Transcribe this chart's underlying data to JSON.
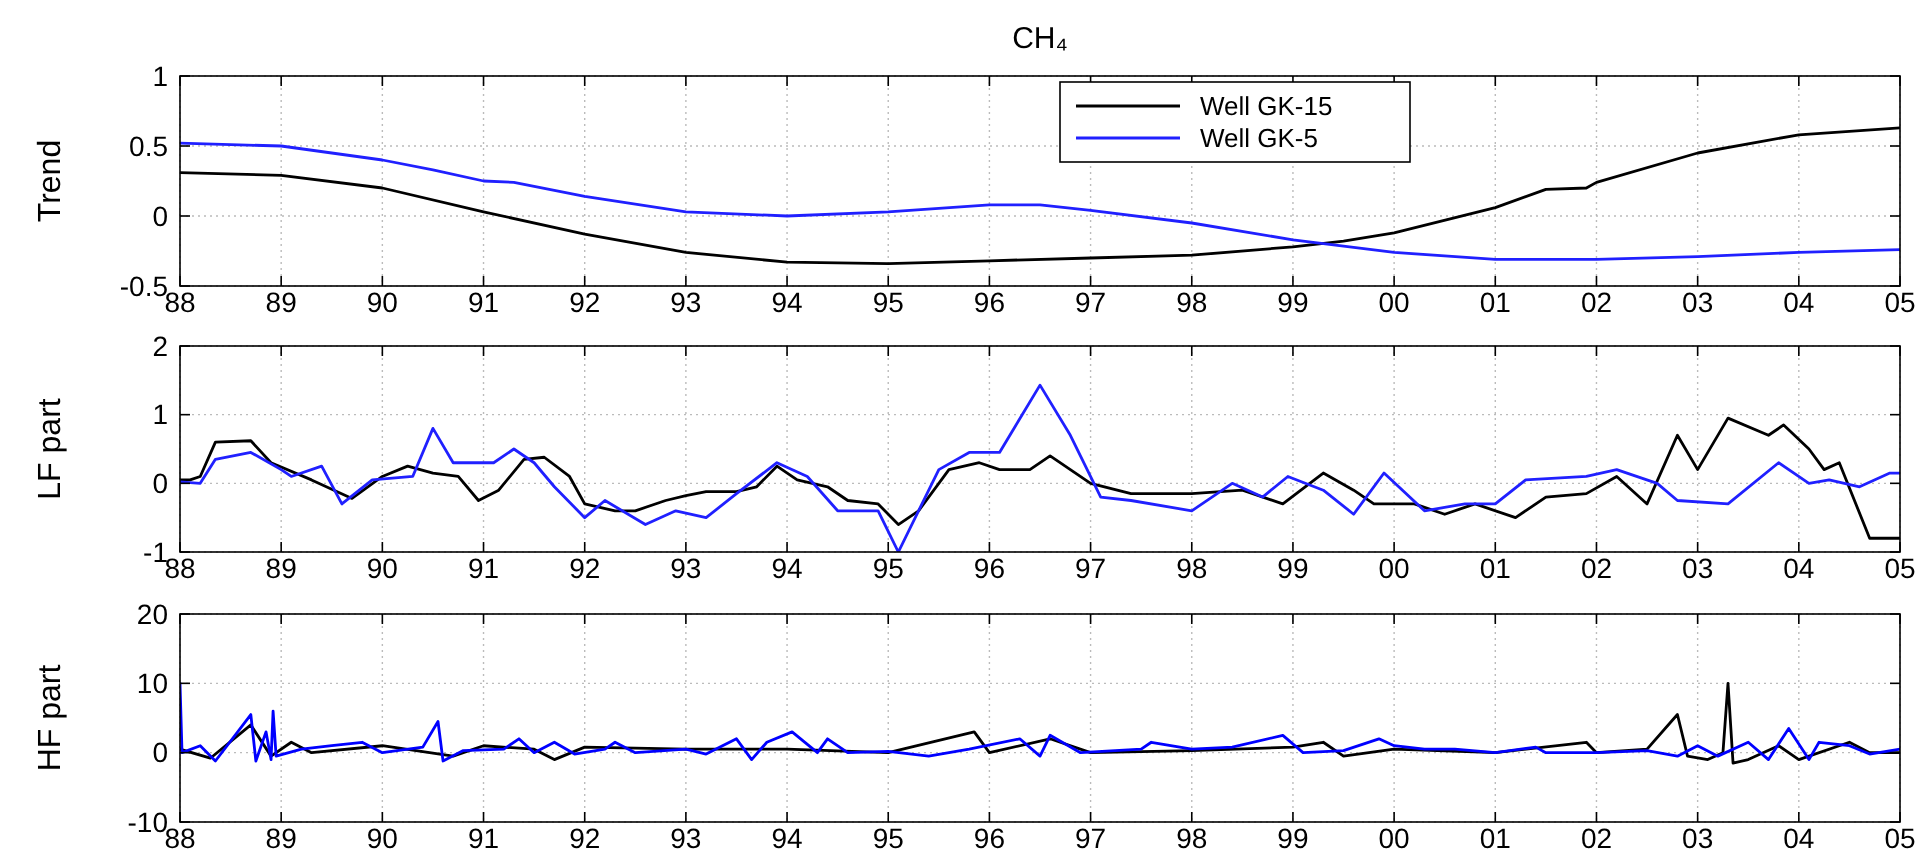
{
  "chart_data": [
    {
      "type": "line",
      "title": "CH₄",
      "ylabel": "Trend",
      "xlim": [
        1988,
        2005
      ],
      "ylim": [
        -0.5,
        1
      ],
      "yticks": [
        -0.5,
        0,
        0.5,
        1
      ],
      "xticks": [
        {
          "value": 1988,
          "label": "88"
        },
        {
          "value": 1989,
          "label": "89"
        },
        {
          "value": 1990,
          "label": "90"
        },
        {
          "value": 1991,
          "label": "91"
        },
        {
          "value": 1992,
          "label": "92"
        },
        {
          "value": 1993,
          "label": "93"
        },
        {
          "value": 1994,
          "label": "94"
        },
        {
          "value": 1995,
          "label": "95"
        },
        {
          "value": 1996,
          "label": "96"
        },
        {
          "value": 1997,
          "label": "97"
        },
        {
          "value": 1998,
          "label": "98"
        },
        {
          "value": 1999,
          "label": "99"
        },
        {
          "value": 2000,
          "label": "00"
        },
        {
          "value": 2001,
          "label": "01"
        },
        {
          "value": 2002,
          "label": "02"
        },
        {
          "value": 2003,
          "label": "03"
        },
        {
          "value": 2004,
          "label": "04"
        },
        {
          "value": 2005,
          "label": "05"
        }
      ],
      "grid": true,
      "legend": "top",
      "line_style": "solid",
      "series": [
        {
          "name": "Well GK-15",
          "color": "#000000",
          "x": [
            1988,
            1989,
            1990,
            1991,
            1992,
            1993,
            1994,
            1995,
            1996,
            1997,
            1998,
            1999,
            1999.5,
            2000,
            2001,
            2001.5,
            2001.9,
            2002,
            2003,
            2004,
            2005
          ],
          "values": [
            0.31,
            0.29,
            0.2,
            0.03,
            -0.13,
            -0.26,
            -0.33,
            -0.34,
            -0.32,
            -0.3,
            -0.28,
            -0.22,
            -0.18,
            -0.12,
            0.06,
            0.19,
            0.2,
            0.24,
            0.45,
            0.58,
            0.63
          ]
        },
        {
          "name": "Well GK-5",
          "color": "#2020ff",
          "x": [
            1988,
            1989,
            1990,
            1990.5,
            1991,
            1991.3,
            1992,
            1993,
            1994,
            1995,
            1996,
            1996.5,
            1997,
            1998,
            1999,
            2000,
            2001,
            2002,
            2003,
            2004,
            2005
          ],
          "values": [
            0.52,
            0.5,
            0.4,
            0.33,
            0.25,
            0.24,
            0.14,
            0.03,
            0,
            0.03,
            0.08,
            0.08,
            0.04,
            -0.05,
            -0.17,
            -0.26,
            -0.31,
            -0.31,
            -0.29,
            -0.26,
            -0.24
          ]
        }
      ]
    },
    {
      "type": "line",
      "ylabel": "LF part",
      "xlim": [
        1988,
        2005
      ],
      "ylim": [
        -1,
        2
      ],
      "yticks": [
        -1,
        0,
        1,
        2
      ],
      "xticks": [
        {
          "value": 1988,
          "label": "88"
        },
        {
          "value": 1989,
          "label": "89"
        },
        {
          "value": 1990,
          "label": "90"
        },
        {
          "value": 1991,
          "label": "91"
        },
        {
          "value": 1992,
          "label": "92"
        },
        {
          "value": 1993,
          "label": "93"
        },
        {
          "value": 1994,
          "label": "94"
        },
        {
          "value": 1995,
          "label": "95"
        },
        {
          "value": 1996,
          "label": "96"
        },
        {
          "value": 1997,
          "label": "97"
        },
        {
          "value": 1998,
          "label": "98"
        },
        {
          "value": 1999,
          "label": "99"
        },
        {
          "value": 2000,
          "label": "00"
        },
        {
          "value": 2001,
          "label": "01"
        },
        {
          "value": 2002,
          "label": "02"
        },
        {
          "value": 2003,
          "label": "03"
        },
        {
          "value": 2004,
          "label": "04"
        },
        {
          "value": 2005,
          "label": "05"
        }
      ],
      "grid": true,
      "line_style": "solid",
      "series": [
        {
          "color": "#000000",
          "x": [
            1988,
            1988.1,
            1988.2,
            1988.35,
            1988.7,
            1988.9,
            1989.3,
            1989.7,
            1990,
            1990.25,
            1990.5,
            1990.75,
            1990.95,
            1991.15,
            1991.4,
            1991.6,
            1991.85,
            1992,
            1992.3,
            1992.5,
            1992.8,
            1993,
            1993.2,
            1993.5,
            1993.7,
            1993.9,
            1994.1,
            1994.4,
            1994.6,
            1994.9,
            1995.1,
            1995.3,
            1995.6,
            1995.9,
            1996.1,
            1996.4,
            1996.6,
            1997,
            1997.4,
            1998,
            1998.5,
            1998.9,
            1999.3,
            1999.6,
            1999.8,
            2000.2,
            2000.5,
            2000.8,
            2001.2,
            2001.5,
            2001.9,
            2002.2,
            2002.5,
            2002.8,
            2003,
            2003.3,
            2003.7,
            2003.85,
            2004.1,
            2004.25,
            2004.4,
            2004.7,
            2005
          ],
          "values": [
            0.05,
            0.05,
            0.1,
            0.6,
            0.62,
            0.3,
            0.05,
            -0.22,
            0.1,
            0.25,
            0.15,
            0.1,
            -0.25,
            -0.1,
            0.35,
            0.38,
            0.1,
            -0.3,
            -0.4,
            -0.4,
            -0.25,
            -0.18,
            -0.12,
            -0.12,
            -0.05,
            0.25,
            0.05,
            -0.05,
            -0.25,
            -0.3,
            -0.6,
            -0.4,
            0.2,
            0.3,
            0.2,
            0.2,
            0.4,
            0,
            -0.15,
            -0.15,
            -0.1,
            -0.3,
            0.15,
            -0.1,
            -0.3,
            -0.3,
            -0.45,
            -0.3,
            -0.5,
            -0.2,
            -0.15,
            0.1,
            -0.3,
            0.7,
            0.2,
            0.95,
            0.7,
            0.85,
            0.5,
            0.2,
            0.3,
            -0.8,
            -0.8
          ]
        },
        {
          "color": "#2020ff",
          "x": [
            1988,
            1988.2,
            1988.35,
            1988.7,
            1989,
            1989.1,
            1989.4,
            1989.6,
            1989.9,
            1990.3,
            1990.5,
            1990.7,
            1991.1,
            1991.3,
            1991.5,
            1991.7,
            1992,
            1992.2,
            1992.6,
            1992.9,
            1993.2,
            1993.5,
            1993.9,
            1994.2,
            1994.5,
            1994.9,
            1995.1,
            1995.5,
            1995.8,
            1996.1,
            1996.5,
            1996.8,
            1997.1,
            1997.4,
            1998,
            1998.4,
            1998.7,
            1998.95,
            1999.3,
            1999.6,
            1999.9,
            2000.3,
            2000.7,
            2001,
            2001.3,
            2001.9,
            2002.2,
            2002.6,
            2002.8,
            2003.3,
            2003.8,
            2004.1,
            2004.3,
            2004.6,
            2004.9,
            2005
          ],
          "values": [
            0.02,
            0,
            0.35,
            0.45,
            0.2,
            0.1,
            0.25,
            -0.3,
            0.05,
            0.1,
            0.8,
            0.3,
            0.3,
            0.5,
            0.3,
            -0.05,
            -0.5,
            -0.25,
            -0.6,
            -0.4,
            -0.5,
            -0.15,
            0.3,
            0.1,
            -0.4,
            -0.4,
            -1,
            0.2,
            0.45,
            0.45,
            1.43,
            0.7,
            -0.2,
            -0.25,
            -0.4,
            0,
            -0.2,
            0.1,
            -0.1,
            -0.45,
            0.15,
            -0.4,
            -0.3,
            -0.3,
            0.05,
            0.1,
            0.2,
            0,
            -0.25,
            -0.3,
            0.3,
            0,
            0.05,
            -0.05,
            0.15,
            0.15
          ]
        }
      ]
    },
    {
      "type": "line",
      "ylabel": "HF part",
      "xlim": [
        1988,
        2005
      ],
      "ylim": [
        -10,
        20
      ],
      "yticks": [
        -10,
        0,
        10,
        20
      ],
      "xticks": [
        {
          "value": 1988,
          "label": "88"
        },
        {
          "value": 1989,
          "label": "89"
        },
        {
          "value": 1990,
          "label": "90"
        },
        {
          "value": 1991,
          "label": "91"
        },
        {
          "value": 1992,
          "label": "92"
        },
        {
          "value": 1993,
          "label": "93"
        },
        {
          "value": 1994,
          "label": "94"
        },
        {
          "value": 1995,
          "label": "95"
        },
        {
          "value": 1996,
          "label": "96"
        },
        {
          "value": 1997,
          "label": "97"
        },
        {
          "value": 1998,
          "label": "98"
        },
        {
          "value": 1999,
          "label": "99"
        },
        {
          "value": 2000,
          "label": "00"
        },
        {
          "value": 2001,
          "label": "01"
        },
        {
          "value": 2002,
          "label": "02"
        },
        {
          "value": 2003,
          "label": "03"
        },
        {
          "value": 2004,
          "label": "04"
        },
        {
          "value": 2005,
          "label": "05"
        }
      ],
      "grid": true,
      "line_style": "solid",
      "series": [
        {
          "color": "#000000",
          "x": [
            1988,
            1988.3,
            1988.7,
            1988.9,
            1989.1,
            1989.3,
            1990,
            1990.7,
            1991,
            1991.5,
            1991.7,
            1992,
            1993,
            1993.5,
            1994,
            1995,
            1995.85,
            1996,
            1996.6,
            1997,
            1998,
            1999,
            1999.3,
            1999.5,
            2000,
            2001,
            2001.9,
            2002,
            2002.5,
            2002.8,
            2002.9,
            2003.1,
            2003.25,
            2003.3,
            2003.35,
            2003.5,
            2003.8,
            2004,
            2004.5,
            2004.7,
            2005
          ],
          "values": [
            0.5,
            -0.8,
            4,
            -0.5,
            1.5,
            0,
            1,
            -0.5,
            1,
            0.5,
            -1,
            0.8,
            0.5,
            0.5,
            0.5,
            0,
            3,
            0,
            2,
            0,
            0.3,
            0.8,
            1.5,
            -0.5,
            0.5,
            0,
            1.5,
            0,
            0.5,
            5.5,
            -0.5,
            -1,
            0,
            10,
            -1.5,
            -1,
            1,
            -1,
            1.5,
            0,
            0
          ]
        },
        {
          "color": "#0000ff",
          "x": [
            1988,
            1988.02,
            1988.2,
            1988.35,
            1988.7,
            1988.75,
            1988.85,
            1988.9,
            1988.92,
            1988.95,
            1989.2,
            1989.5,
            1989.8,
            1990,
            1990.4,
            1990.55,
            1990.6,
            1990.8,
            1991.2,
            1991.35,
            1991.5,
            1991.7,
            1991.9,
            1992.2,
            1992.3,
            1992.5,
            1993,
            1993.2,
            1993.5,
            1993.65,
            1993.8,
            1994.05,
            1994.3,
            1994.4,
            1994.6,
            1995,
            1995.4,
            1995.8,
            1996.3,
            1996.5,
            1996.6,
            1996.9,
            1997.5,
            1997.6,
            1998,
            1998.4,
            1998.9,
            1999.1,
            1999.5,
            1999.85,
            2000,
            2000.3,
            2000.6,
            2001,
            2001.4,
            2001.5,
            2002,
            2002.5,
            2002.8,
            2003,
            2003.2,
            2003.5,
            2003.7,
            2003.9,
            2004.1,
            2004.2,
            2004.5,
            2004.7,
            2005
          ],
          "values": [
            10,
            0,
            1,
            -1.2,
            5.5,
            -1.2,
            3,
            -1,
            6,
            -0.5,
            0.5,
            1,
            1.5,
            0,
            0.8,
            4.5,
            -1.2,
            0.3,
            0.5,
            2,
            0,
            1.5,
            -0.2,
            0.5,
            1.5,
            0,
            0.5,
            -0.2,
            2,
            -1,
            1.5,
            3,
            0,
            2,
            0,
            0.2,
            -0.5,
            0.5,
            2,
            -0.5,
            2.5,
            0,
            0.5,
            1.5,
            0.5,
            0.8,
            2.5,
            0,
            0.3,
            2,
            1,
            0.5,
            0.5,
            0,
            0.8,
            0,
            0,
            0.3,
            -0.5,
            1,
            -0.5,
            1.5,
            -1,
            3.5,
            -1,
            1.5,
            1,
            -0.2,
            0.5
          ]
        }
      ]
    }
  ]
}
